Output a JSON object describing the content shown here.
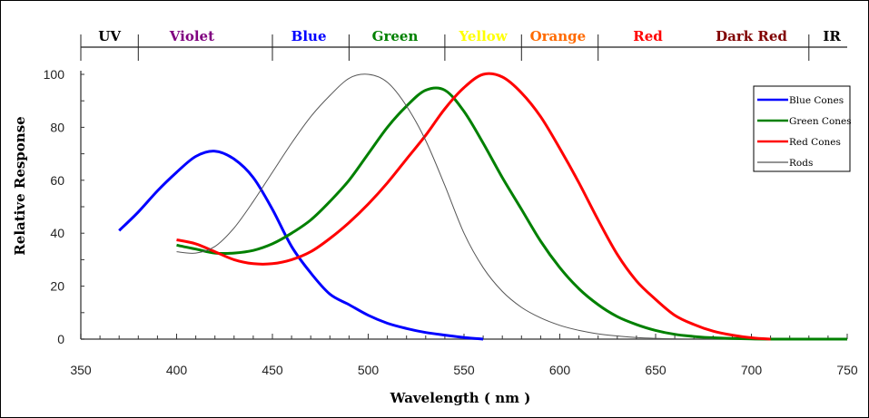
{
  "chart_data": {
    "type": "line",
    "title": "",
    "xlabel": "Wavelength  ( nm )",
    "ylabel": "Relative Response",
    "xlim": [
      350,
      750
    ],
    "ylim": [
      0,
      100
    ],
    "x_ticks": [
      350,
      400,
      450,
      500,
      550,
      600,
      650,
      700,
      750
    ],
    "y_ticks": [
      0,
      20,
      40,
      60,
      80,
      100
    ],
    "x_minor_step": 10,
    "y_minor_step": 10,
    "grid": false,
    "legend_position": "right",
    "spectrum_bands": [
      {
        "label": "UV",
        "from": 350,
        "to": 380,
        "color": "#000000"
      },
      {
        "label": "Violet",
        "from": 380,
        "to": 450,
        "color": "#800080"
      },
      {
        "label": "Blue",
        "from": 450,
        "to": 490,
        "color": "#0000ff"
      },
      {
        "label": "Green",
        "from": 490,
        "to": 540,
        "color": "#008000"
      },
      {
        "label": "Yellow",
        "from": 540,
        "to": 580,
        "color": "#ffff00"
      },
      {
        "label": "Orange",
        "from": 580,
        "to": 620,
        "color": "#ff6a00"
      },
      {
        "label": "Red",
        "from": 620,
        "to": 730,
        "color": "#ff0000"
      },
      {
        "label": "Dark Red",
        "from": 620,
        "to": 730,
        "color": "#800000"
      },
      {
        "label": "IR",
        "from": 730,
        "to": 750,
        "color": "#000000"
      }
    ],
    "series": [
      {
        "name": "Blue Cones",
        "color": "#0000ff",
        "x": [
          370,
          380,
          390,
          400,
          410,
          420,
          430,
          440,
          450,
          460,
          470,
          480,
          490,
          500,
          510,
          520,
          530,
          540,
          550,
          560
        ],
        "y": [
          41,
          48,
          56,
          63,
          69,
          71,
          68,
          61,
          49,
          35,
          25,
          17,
          13,
          9,
          6,
          4,
          2.5,
          1.5,
          0.6,
          0
        ]
      },
      {
        "name": "Green Cones",
        "color": "#008000",
        "x": [
          400,
          410,
          420,
          430,
          440,
          450,
          460,
          470,
          480,
          490,
          500,
          510,
          520,
          530,
          540,
          550,
          560,
          570,
          580,
          590,
          600,
          610,
          620,
          630,
          640,
          650,
          660,
          670,
          680,
          700,
          720,
          750
        ],
        "y": [
          35.5,
          34,
          32.5,
          32.5,
          33.5,
          36,
          40,
          45,
          52,
          60,
          70,
          80,
          88,
          94,
          94,
          86,
          74,
          61,
          49,
          37,
          27,
          19,
          13,
          8.5,
          5.5,
          3.3,
          1.8,
          1,
          0.5,
          0.1,
          0,
          0
        ]
      },
      {
        "name": "Red Cones",
        "color": "#ff0000",
        "x": [
          400,
          410,
          420,
          430,
          440,
          450,
          460,
          470,
          480,
          490,
          500,
          510,
          520,
          530,
          540,
          550,
          560,
          570,
          580,
          590,
          600,
          610,
          620,
          630,
          640,
          650,
          660,
          670,
          680,
          690,
          700,
          710
        ],
        "y": [
          37.5,
          36,
          33,
          30,
          28.5,
          28.5,
          30,
          33,
          38,
          44,
          51,
          59,
          68,
          77,
          87,
          95,
          100,
          99,
          93,
          84,
          72,
          59,
          45,
          32,
          22,
          15,
          9,
          5.5,
          3,
          1.5,
          0.5,
          0
        ]
      },
      {
        "name": "Rods",
        "color": "#555555",
        "x": [
          400,
          410,
          420,
          430,
          440,
          450,
          460,
          470,
          480,
          490,
          500,
          510,
          520,
          530,
          540,
          550,
          560,
          570,
          580,
          590,
          600,
          610,
          620,
          630,
          640,
          660,
          680
        ],
        "y": [
          33,
          32.5,
          35,
          42,
          52,
          63,
          74,
          84,
          92,
          98.5,
          100,
          97,
          88,
          75,
          58,
          40,
          27,
          18,
          12,
          8,
          5.2,
          3.3,
          2,
          1.2,
          0.6,
          0.1,
          0
        ]
      }
    ]
  }
}
